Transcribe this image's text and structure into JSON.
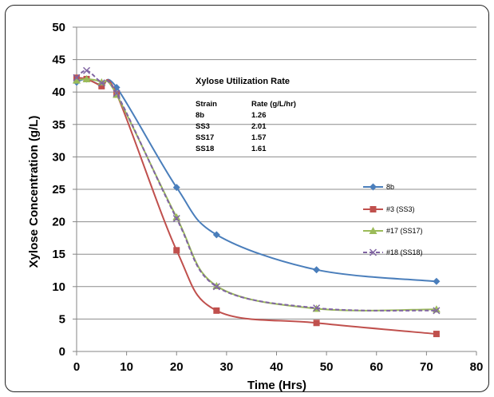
{
  "chart_data": {
    "type": "line",
    "title": "",
    "xlabel": "Time (Hrs)",
    "ylabel": "Xylose Concentration (g/L)",
    "xlim": [
      0,
      80
    ],
    "ylim": [
      0,
      50
    ],
    "xticks": [
      "0",
      "10",
      "20",
      "30",
      "40",
      "50",
      "60",
      "70",
      "80"
    ],
    "yticks": [
      "0",
      "5",
      "10",
      "15",
      "20",
      "25",
      "30",
      "35",
      "40",
      "45",
      "50"
    ],
    "grid": "horizontal",
    "legend_position": "right",
    "series": [
      {
        "name": "8b",
        "color": "#4a7ebb",
        "marker": "diamond",
        "dashed": false,
        "x": [
          0,
          2,
          5,
          8,
          20,
          28,
          48,
          72
        ],
        "y": [
          41.5,
          42.0,
          41.0,
          40.7,
          25.3,
          18.0,
          12.6,
          10.8
        ]
      },
      {
        "name": "#3 (SS3)",
        "color": "#c0504d",
        "marker": "square",
        "dashed": false,
        "x": [
          0,
          2,
          5,
          8,
          20,
          28,
          48,
          72
        ],
        "y": [
          42.2,
          42.0,
          40.9,
          39.7,
          15.6,
          6.3,
          4.4,
          2.7
        ]
      },
      {
        "name": "#17 (SS17)",
        "color": "#9bbb59",
        "marker": "triangle",
        "dashed": false,
        "x": [
          0,
          2,
          5,
          8,
          20,
          28,
          48,
          72
        ],
        "y": [
          41.8,
          42.0,
          41.5,
          39.6,
          20.7,
          10.1,
          6.6,
          6.5
        ]
      },
      {
        "name": "#18 (SS18)",
        "color": "#8064a2",
        "marker": "x",
        "dashed": true,
        "x": [
          0,
          2,
          5,
          8,
          20,
          28,
          48,
          72
        ],
        "y": [
          42.2,
          43.3,
          41.4,
          39.8,
          20.5,
          10.0,
          6.7,
          6.3
        ]
      }
    ],
    "annotation": {
      "title": "Xylose Utilization Rate",
      "headers": [
        "Strain",
        "Rate (g/L/hr)"
      ],
      "rows": [
        [
          "8b",
          "1.26"
        ],
        [
          "SS3",
          "2.01"
        ],
        [
          "SS17",
          "1.57"
        ],
        [
          "SS18",
          "1.61"
        ]
      ]
    }
  }
}
